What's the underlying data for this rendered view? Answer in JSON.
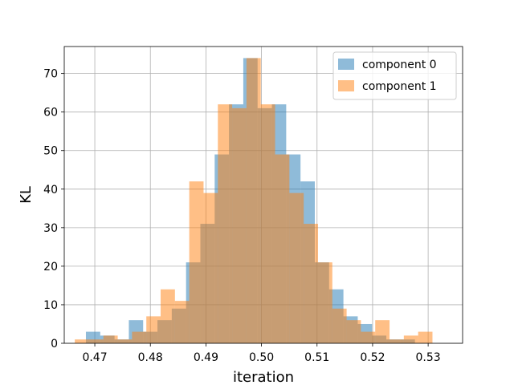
{
  "chart_data": {
    "type": "bar",
    "subtype": "overlaid-histogram",
    "title": "",
    "xlabel": "iteration",
    "ylabel": "KL",
    "xlim": [
      0.4645,
      0.5362
    ],
    "ylim": [
      0,
      77
    ],
    "xticks": [
      0.47,
      0.48,
      0.49,
      0.5,
      0.51,
      0.52,
      0.53
    ],
    "xtick_labels": [
      "0.47",
      "0.48",
      "0.49",
      "0.50",
      "0.51",
      "0.52",
      "0.53"
    ],
    "yticks": [
      0,
      10,
      20,
      30,
      40,
      50,
      60,
      70
    ],
    "ytick_labels": [
      "0",
      "10",
      "20",
      "30",
      "40",
      "50",
      "60",
      "70"
    ],
    "grid": true,
    "legend_position": "top-right",
    "bar_alpha": 0.5,
    "series": [
      {
        "name": "component 0",
        "color": "#1f77b4",
        "bin_start": 0.4684,
        "bin_width": 0.002575,
        "values": [
          3,
          2,
          1,
          6,
          3,
          6,
          9,
          21,
          31,
          49,
          62,
          74,
          61,
          62,
          49,
          42,
          21,
          14,
          7,
          5,
          2,
          1,
          1
        ]
      },
      {
        "name": "component 1",
        "color": "#ff7f0e",
        "bin_start": 0.4664,
        "bin_width": 0.002575,
        "values": [
          1,
          1,
          2,
          1,
          3,
          7,
          14,
          11,
          42,
          39,
          62,
          61,
          74,
          62,
          49,
          39,
          31,
          21,
          9,
          6,
          3,
          6,
          1,
          2,
          3
        ]
      }
    ]
  }
}
